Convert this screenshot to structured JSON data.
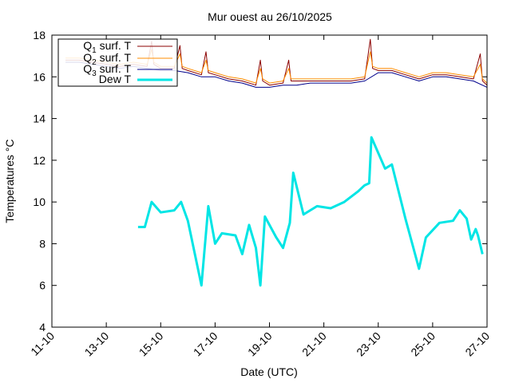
{
  "chart_data": {
    "type": "line",
    "title": "Mur ouest au 26/10/2025",
    "xlabel": "Date (UTC)",
    "ylabel": "Temperatures °C",
    "xlim": [
      "2025-10-11",
      "2025-10-27"
    ],
    "ylim": [
      4,
      18
    ],
    "x_ticks": [
      "11-10",
      "13-10",
      "15-10",
      "17-10",
      "19-10",
      "21-10",
      "23-10",
      "25-10",
      "27-10"
    ],
    "y_ticks": [
      4,
      6,
      8,
      10,
      12,
      14,
      16,
      18
    ],
    "grid": false,
    "legend_position": "top-left",
    "legend": [
      {
        "main": "Q",
        "sub": "1",
        "rest": " surf. T"
      },
      {
        "main": "Q",
        "sub": "2",
        "rest": " surf. T"
      },
      {
        "main": "Q",
        "sub": "3",
        "rest": " surf. T"
      },
      {
        "main": "Dew T",
        "sub": "",
        "rest": ""
      }
    ],
    "series": [
      {
        "name": "Q1 surf. T",
        "color": "#8b0000",
        "x": [
          "2025-10-11T12:00",
          "2025-10-12T00:00",
          "2025-10-12T12:00",
          "2025-10-13T00:00",
          "2025-10-13T12:00",
          "2025-10-14T00:00",
          "2025-10-14T12:00",
          "2025-10-14T16:00",
          "2025-10-14T18:00",
          "2025-10-15T00:00",
          "2025-10-15T12:00",
          "2025-10-15T17:00",
          "2025-10-15T19:00",
          "2025-10-16T00:00",
          "2025-10-16T12:00",
          "2025-10-16T16:00",
          "2025-10-16T18:00",
          "2025-10-17T00:00",
          "2025-10-17T12:00",
          "2025-10-18T00:00",
          "2025-10-18T12:00",
          "2025-10-18T16:00",
          "2025-10-18T18:00",
          "2025-10-19T00:00",
          "2025-10-19T12:00",
          "2025-10-19T17:00",
          "2025-10-19T19:00",
          "2025-10-20T00:00",
          "2025-10-20T12:00",
          "2025-10-21T00:00",
          "2025-10-21T12:00",
          "2025-10-22T00:00",
          "2025-10-22T12:00",
          "2025-10-22T17:00",
          "2025-10-22T19:00",
          "2025-10-23T00:00",
          "2025-10-23T12:00",
          "2025-10-24T00:00",
          "2025-10-24T12:00",
          "2025-10-25T00:00",
          "2025-10-25T12:00",
          "2025-10-26T00:00",
          "2025-10-26T12:00",
          "2025-10-26T18:00",
          "2025-10-26T20:00",
          "2025-10-27T00:00"
        ],
        "values": [
          16.8,
          16.8,
          16.7,
          16.6,
          16.5,
          16.6,
          16.5,
          17.7,
          16.6,
          16.4,
          16.4,
          17.5,
          16.4,
          16.3,
          16.1,
          17.2,
          16.2,
          16.1,
          15.9,
          15.8,
          15.6,
          16.8,
          15.8,
          15.6,
          15.7,
          16.8,
          15.8,
          15.8,
          15.8,
          15.8,
          15.8,
          15.8,
          15.9,
          17.8,
          16.4,
          16.3,
          16.3,
          16.1,
          15.9,
          16.1,
          16.1,
          16.0,
          15.9,
          17.1,
          15.8,
          15.6
        ]
      },
      {
        "name": "Q2 surf. T",
        "color": "#ff8c00",
        "x": [
          "2025-10-11T12:00",
          "2025-10-12T00:00",
          "2025-10-12T12:00",
          "2025-10-13T00:00",
          "2025-10-13T12:00",
          "2025-10-14T00:00",
          "2025-10-14T12:00",
          "2025-10-14T16:00",
          "2025-10-14T18:00",
          "2025-10-15T00:00",
          "2025-10-15T12:00",
          "2025-10-15T17:00",
          "2025-10-15T19:00",
          "2025-10-16T00:00",
          "2025-10-16T12:00",
          "2025-10-16T16:00",
          "2025-10-16T18:00",
          "2025-10-17T00:00",
          "2025-10-17T12:00",
          "2025-10-18T00:00",
          "2025-10-18T12:00",
          "2025-10-18T16:00",
          "2025-10-18T18:00",
          "2025-10-19T00:00",
          "2025-10-19T12:00",
          "2025-10-19T17:00",
          "2025-10-19T19:00",
          "2025-10-20T00:00",
          "2025-10-20T12:00",
          "2025-10-21T00:00",
          "2025-10-21T12:00",
          "2025-10-22T00:00",
          "2025-10-22T12:00",
          "2025-10-22T17:00",
          "2025-10-22T19:00",
          "2025-10-23T00:00",
          "2025-10-23T12:00",
          "2025-10-24T00:00",
          "2025-10-24T12:00",
          "2025-10-25T00:00",
          "2025-10-25T12:00",
          "2025-10-26T00:00",
          "2025-10-26T12:00",
          "2025-10-26T18:00",
          "2025-10-26T20:00",
          "2025-10-27T00:00"
        ],
        "values": [
          16.9,
          16.9,
          16.8,
          16.7,
          16.6,
          16.7,
          16.6,
          17.3,
          16.7,
          16.5,
          16.5,
          17.1,
          16.5,
          16.4,
          16.2,
          16.8,
          16.3,
          16.2,
          16.0,
          15.9,
          15.7,
          16.4,
          15.9,
          15.7,
          15.8,
          16.4,
          15.9,
          15.9,
          15.9,
          15.9,
          15.9,
          15.9,
          16.0,
          17.2,
          16.5,
          16.4,
          16.4,
          16.2,
          16.0,
          16.2,
          16.2,
          16.1,
          16.0,
          16.6,
          15.9,
          15.7
        ]
      },
      {
        "name": "Q3 surf. T",
        "color": "#00008b",
        "x": [
          "2025-10-11T12:00",
          "2025-10-12T00:00",
          "2025-10-12T12:00",
          "2025-10-13T00:00",
          "2025-10-13T12:00",
          "2025-10-14T00:00",
          "2025-10-14T12:00",
          "2025-10-15T00:00",
          "2025-10-15T12:00",
          "2025-10-16T00:00",
          "2025-10-16T12:00",
          "2025-10-17T00:00",
          "2025-10-17T12:00",
          "2025-10-18T00:00",
          "2025-10-18T12:00",
          "2025-10-19T00:00",
          "2025-10-19T12:00",
          "2025-10-20T00:00",
          "2025-10-20T12:00",
          "2025-10-21T00:00",
          "2025-10-21T12:00",
          "2025-10-22T00:00",
          "2025-10-22T12:00",
          "2025-10-23T00:00",
          "2025-10-23T12:00",
          "2025-10-24T00:00",
          "2025-10-24T12:00",
          "2025-10-25T00:00",
          "2025-10-25T12:00",
          "2025-10-26T00:00",
          "2025-10-26T12:00",
          "2025-10-27T00:00"
        ],
        "values": [
          16.7,
          16.7,
          16.6,
          16.5,
          16.4,
          16.5,
          16.4,
          16.3,
          16.3,
          16.2,
          16.0,
          16.0,
          15.8,
          15.7,
          15.5,
          15.5,
          15.6,
          15.6,
          15.7,
          15.7,
          15.7,
          15.7,
          15.8,
          16.2,
          16.2,
          16.0,
          15.8,
          16.0,
          16.0,
          15.9,
          15.8,
          15.5
        ]
      },
      {
        "name": "Dew T",
        "color": "#00e5e5",
        "x": [
          "2025-10-14T04:00",
          "2025-10-14T10:00",
          "2025-10-14T16:00",
          "2025-10-15T00:00",
          "2025-10-15T12:00",
          "2025-10-15T18:00",
          "2025-10-16T00:00",
          "2025-10-16T12:00",
          "2025-10-16T18:00",
          "2025-10-17T00:00",
          "2025-10-17T06:00",
          "2025-10-17T18:00",
          "2025-10-18T00:00",
          "2025-10-18T06:00",
          "2025-10-18T12:00",
          "2025-10-18T16:00",
          "2025-10-18T20:00",
          "2025-10-19T06:00",
          "2025-10-19T12:00",
          "2025-10-19T18:00",
          "2025-10-19T21:00",
          "2025-10-20T06:00",
          "2025-10-20T18:00",
          "2025-10-21T06:00",
          "2025-10-21T18:00",
          "2025-10-22T06:00",
          "2025-10-22T12:00",
          "2025-10-22T16:00",
          "2025-10-22T18:00",
          "2025-10-23T06:00",
          "2025-10-23T12:00",
          "2025-10-24T00:00",
          "2025-10-24T06:00",
          "2025-10-24T12:00",
          "2025-10-24T18:00",
          "2025-10-25T06:00",
          "2025-10-25T18:00",
          "2025-10-26T00:00",
          "2025-10-26T06:00",
          "2025-10-26T10:00",
          "2025-10-26T14:00",
          "2025-10-26T16:00",
          "2025-10-26T20:00"
        ],
        "values": [
          8.8,
          8.8,
          10.0,
          9.5,
          9.6,
          10.0,
          9.1,
          6.0,
          9.8,
          8.0,
          8.5,
          8.4,
          7.5,
          8.9,
          7.8,
          6.0,
          9.3,
          8.3,
          7.8,
          9.0,
          11.4,
          9.4,
          9.8,
          9.7,
          10.0,
          10.5,
          10.8,
          10.9,
          13.1,
          11.6,
          11.8,
          9.2,
          8.0,
          6.8,
          8.3,
          9.0,
          9.1,
          9.6,
          9.2,
          8.2,
          8.7,
          8.4,
          7.5
        ]
      }
    ]
  }
}
